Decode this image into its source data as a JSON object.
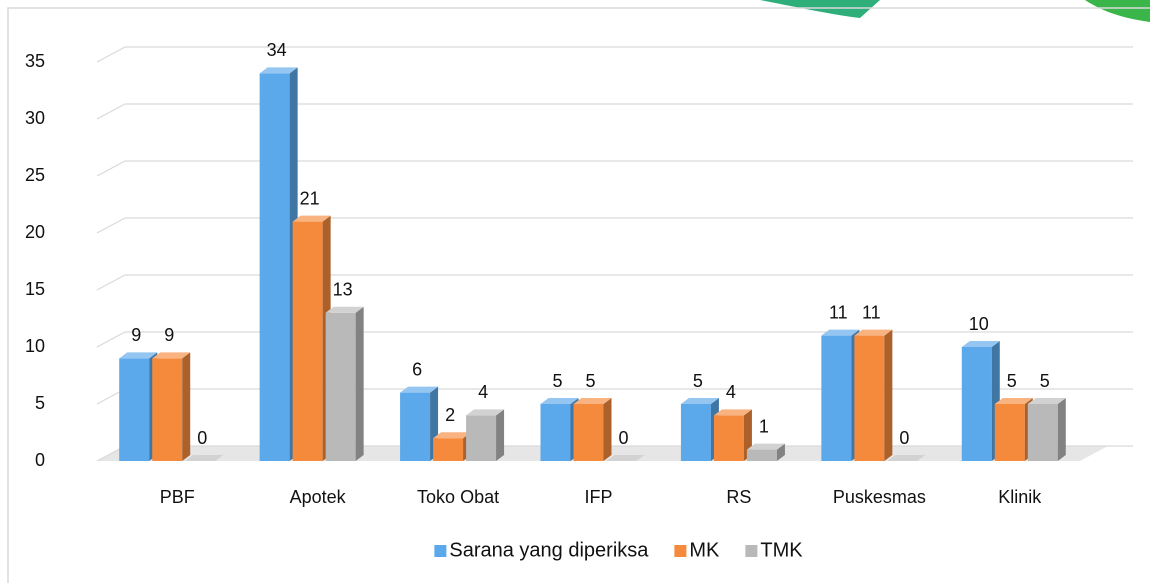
{
  "chart_data": {
    "type": "bar",
    "three_d": true,
    "categories": [
      "PBF",
      "Apotek",
      "Toko Obat",
      "IFP",
      "RS",
      "Puskesmas",
      "Klinik"
    ],
    "series": [
      {
        "name": "Sarana yang diperiksa",
        "color": "#5ba8ea",
        "values": [
          9,
          34,
          6,
          5,
          5,
          11,
          10
        ]
      },
      {
        "name": "MK",
        "color": "#f58a3c",
        "values": [
          9,
          21,
          2,
          5,
          4,
          11,
          5
        ]
      },
      {
        "name": "TMK",
        "color": "#b9b9b9",
        "values": [
          0,
          13,
          4,
          0,
          1,
          0,
          5
        ]
      }
    ],
    "ylim": [
      0,
      35
    ],
    "yticks": [
      0,
      5,
      10,
      15,
      20,
      25,
      30,
      35
    ],
    "grid": true,
    "legend": "bottom"
  }
}
